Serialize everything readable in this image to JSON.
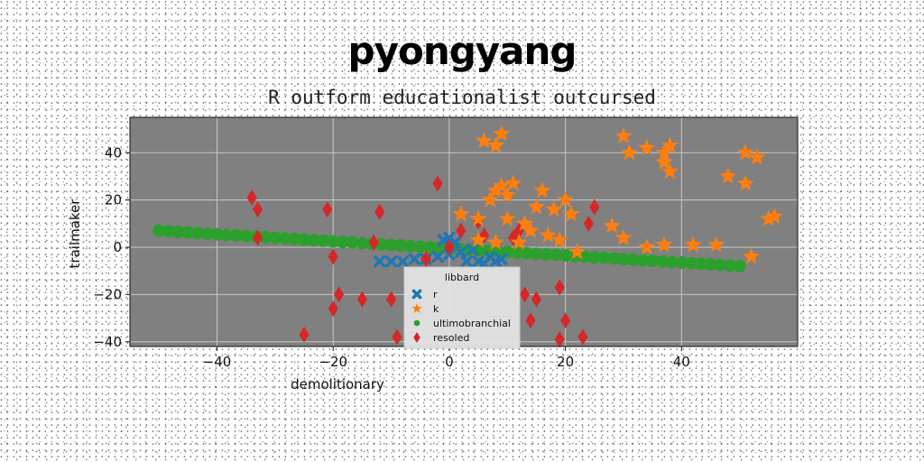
{
  "title": "pyongyang",
  "subtitle": "R outform educationalist outcursed",
  "colors": {
    "background": "#808080",
    "grid": "#c8c8c8",
    "r": "#1f77b4",
    "k": "#ff7f0e",
    "ultimobranchial": "#2ca02c",
    "resoled": "#d62728"
  },
  "chart_data": {
    "type": "scatter",
    "title": "R outform educationalist outcursed",
    "xlabel": "demolitionary",
    "ylabel": "trailmaker",
    "xlim": [
      -55,
      60
    ],
    "ylim": [
      -42,
      55
    ],
    "xticks": [
      -40,
      -20,
      0,
      20,
      40
    ],
    "yticks": [
      -40,
      -20,
      0,
      20,
      40
    ],
    "xtick_labels": [
      "−40",
      "−20",
      "0",
      "20",
      "40"
    ],
    "ytick_labels": [
      "−40",
      "−20",
      "0",
      "20",
      "40"
    ],
    "grid": true,
    "legend": {
      "title": "libbard",
      "location": "lower-center",
      "entries": [
        "r",
        "k",
        "ultimobranchial",
        "resoled"
      ]
    },
    "series": [
      {
        "name": "r",
        "marker": "x",
        "color": "#1f77b4",
        "points": [
          [
            -12,
            -6
          ],
          [
            -10,
            -6
          ],
          [
            -8,
            -6
          ],
          [
            -6,
            -5
          ],
          [
            -4,
            -5
          ],
          [
            -2,
            -4
          ],
          [
            0,
            -3
          ],
          [
            2,
            -2
          ],
          [
            4,
            -1
          ],
          [
            0,
            4
          ],
          [
            -1,
            3
          ],
          [
            1,
            2
          ],
          [
            3,
            -6
          ],
          [
            5,
            -6
          ],
          [
            6,
            -7
          ],
          [
            8,
            -6
          ],
          [
            9,
            -5
          ],
          [
            7,
            -4
          ]
        ]
      },
      {
        "name": "k",
        "marker": "star",
        "color": "#ff7f0e",
        "points": [
          [
            6,
            45
          ],
          [
            8,
            43
          ],
          [
            9,
            48
          ],
          [
            30,
            47
          ],
          [
            31,
            40
          ],
          [
            34,
            42
          ],
          [
            37,
            40
          ],
          [
            38,
            43
          ],
          [
            37,
            36
          ],
          [
            38,
            32
          ],
          [
            51,
            40
          ],
          [
            53,
            38
          ],
          [
            8,
            24
          ],
          [
            9,
            26
          ],
          [
            11,
            27
          ],
          [
            16,
            24
          ],
          [
            20,
            20
          ],
          [
            7,
            20
          ],
          [
            10,
            22
          ],
          [
            15,
            17
          ],
          [
            18,
            16
          ],
          [
            21,
            14
          ],
          [
            2,
            14
          ],
          [
            5,
            12
          ],
          [
            10,
            12
          ],
          [
            13,
            10
          ],
          [
            14,
            7
          ],
          [
            17,
            5
          ],
          [
            19,
            3
          ],
          [
            28,
            9
          ],
          [
            30,
            4
          ],
          [
            34,
            0
          ],
          [
            37,
            1
          ],
          [
            42,
            1
          ],
          [
            46,
            1
          ],
          [
            52,
            -4
          ],
          [
            48,
            30
          ],
          [
            51,
            27
          ],
          [
            55,
            12
          ],
          [
            56,
            13
          ],
          [
            5,
            3
          ],
          [
            8,
            2
          ],
          [
            12,
            2
          ],
          [
            22,
            -2
          ]
        ]
      },
      {
        "name": "ultimobranchial",
        "marker": "circle",
        "color": "#2ca02c",
        "line": {
          "x": [
            -50,
            50
          ],
          "y": [
            7,
            -8
          ]
        }
      },
      {
        "name": "resoled",
        "marker": "diamond",
        "color": "#d62728",
        "points": [
          [
            -34,
            21
          ],
          [
            -33,
            16
          ],
          [
            -33,
            4
          ],
          [
            -21,
            16
          ],
          [
            -20,
            -4
          ],
          [
            -19,
            -20
          ],
          [
            -20,
            -26
          ],
          [
            -15,
            -22
          ],
          [
            -12,
            15
          ],
          [
            -13,
            2
          ],
          [
            -10,
            -22
          ],
          [
            -9,
            -38
          ],
          [
            -4,
            -5
          ],
          [
            -2,
            27
          ],
          [
            0,
            0
          ],
          [
            2,
            7
          ],
          [
            5,
            11
          ],
          [
            6,
            5
          ],
          [
            11,
            4
          ],
          [
            12,
            7
          ],
          [
            13,
            -20
          ],
          [
            15,
            -22
          ],
          [
            14,
            -31
          ],
          [
            19,
            -17
          ],
          [
            20,
            -31
          ],
          [
            19,
            -39
          ],
          [
            23,
            -38
          ],
          [
            24,
            10
          ],
          [
            25,
            17
          ],
          [
            -25,
            -37
          ]
        ]
      }
    ]
  }
}
